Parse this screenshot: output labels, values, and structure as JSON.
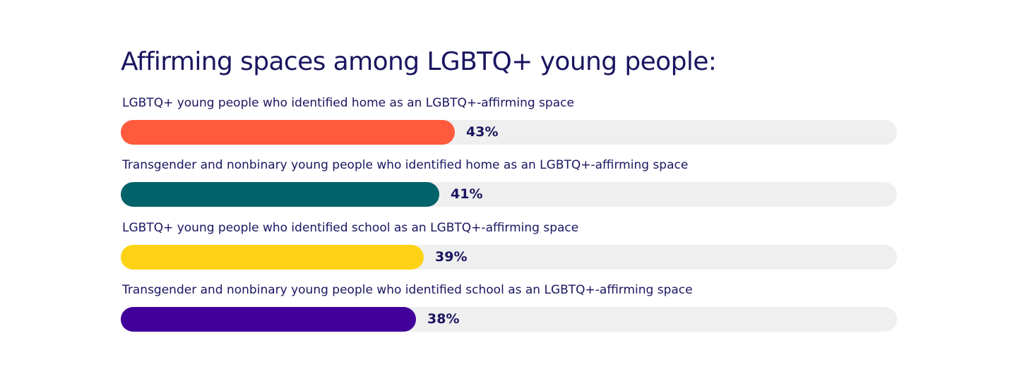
{
  "chart_data": {
    "type": "bar",
    "orientation": "horizontal",
    "title": "Affirming spaces among LGBTQ+ young people:",
    "categories": [
      "LGBTQ+ young people who identified home as an LGBTQ+-affirming space",
      "Transgender and nonbinary young people who identified home as an LGBTQ+-affirming space",
      "LGBTQ+ young people who identified school as an LGBTQ+-affirming space",
      "Transgender and nonbinary young people who identified school as an LGBTQ+-affirming space"
    ],
    "values": [
      43,
      41,
      39,
      38
    ],
    "value_labels": [
      "43%",
      "41%",
      "39%",
      "38%"
    ],
    "colors": [
      "#ff5a3c",
      "#03636a",
      "#fdd214",
      "#42009a"
    ],
    "track_color": "#efefef",
    "xlim": [
      0,
      100
    ],
    "grid": false,
    "legend": "none"
  }
}
